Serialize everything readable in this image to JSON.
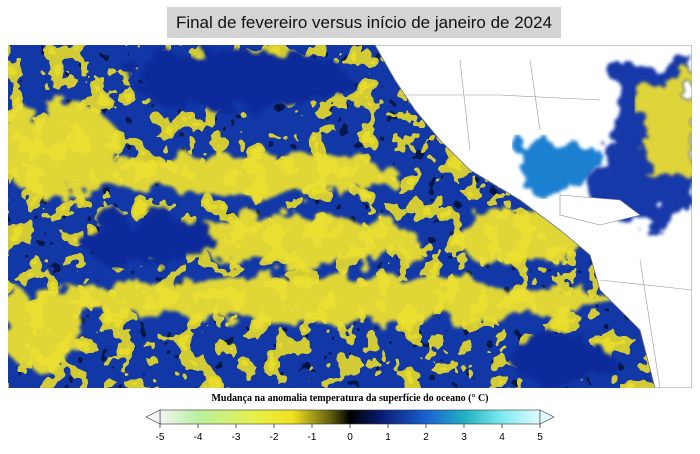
{
  "title": "Final de fevereiro versus início de janeiro de 2024",
  "colorbar": {
    "label": "Mudança na anomalia temperatura da superfície do oceano (° C)",
    "ticks": [
      -5,
      -4,
      -3,
      -2,
      -1,
      0,
      1,
      2,
      3,
      4,
      5
    ],
    "lim": [
      -5,
      5
    ]
  }
}
